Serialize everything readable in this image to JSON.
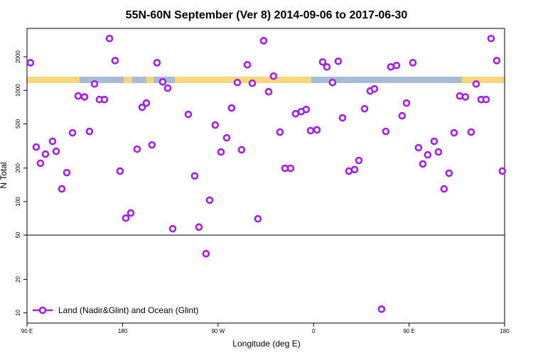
{
  "chart_data": {
    "type": "scatter",
    "title": "55N-60N September (Ver 8)   2014-09-06 to 2017-06-30",
    "x_label": "Longitude (deg E)",
    "y_label": "N Total",
    "log_y": true,
    "legend": "bottomleft",
    "reference_line": 50,
    "xlim": [
      90,
      540
    ],
    "xticks": [
      {
        "value": 90,
        "label": "90 E"
      },
      180,
      {
        "value": 270,
        "label": "90 W"
      },
      {
        "value": 360,
        "label": "0"
      },
      {
        "value": 450,
        "label": "90 E"
      },
      {
        "value": 540,
        "label": "180"
      }
    ],
    "ylim": [
      8.1,
      3600
    ],
    "yticks": [
      10,
      20,
      50,
      100,
      200,
      500,
      1000,
      2000
    ],
    "x": [
      93.3,
      98.7,
      102.7,
      107.4,
      114.1,
      117.5,
      122.8,
      127.5,
      132.9,
      138.2,
      144.2,
      148.9,
      153.6,
      158.3,
      163,
      167.7,
      173,
      177.7,
      183.1,
      187.8,
      193.8,
      198.5,
      202.5,
      207.8,
      212.5,
      217.9,
      222.6,
      227.3,
      242,
      248,
      252,
      258.7,
      262.1,
      267.4,
      272.8,
      278.2,
      282.8,
      288.2,
      292.2,
      297.6,
      302.3,
      307.6,
      313,
      317.7,
      322.3,
      328.4,
      333.1,
      338.4,
      343.1,
      348.5,
      353.1,
      357.2,
      363.2,
      368.6,
      372.6,
      377.9,
      383.3,
      387.3,
      393.3,
      398.7,
      402.7,
      408.1,
      413.4,
      417.4,
      424.1,
      428.1,
      432.8,
      438.2,
      443.5,
      447.6,
      453.6,
      458.9,
      463,
      467.6,
      473.7,
      477.7,
      483,
      487.7,
      492.4,
      497.8,
      503.1,
      508.5,
      513.2,
      517.9,
      522.6,
      527.3,
      532.6,
      537.9
    ],
    "series": [
      {
        "name": "Land (Nadir&Glint) and Ocean (Glint)",
        "color": "#a020f0",
        "values": [
          1770,
          309,
          221,
          267,
          348,
          283,
          130,
          182,
          415,
          889,
          872,
          427,
          1140,
          826,
          826,
          2920,
          1850,
          188,
          71,
          79,
          296,
          703,
          768,
          323,
          1770,
          1190,
          1045,
          57,
          607,
          170,
          59,
          34,
          103,
          487,
          279,
          374,
          693,
          1175,
          292,
          1695,
          1158,
          70,
          2790,
          971,
          1341,
          421,
          199,
          199,
          616,
          644,
          673,
          434,
          441,
          1798,
          1622,
          1175,
          1824,
          565,
          188,
          194,
          234,
          683,
          986,
          1030,
          10.8,
          427,
          1622,
          1671,
          590,
          768,
          1770,
          305,
          218,
          263,
          348,
          279,
          130,
          180,
          415,
          889,
          872,
          421,
          1140,
          826,
          826,
          2920,
          1850,
          188
        ]
      }
    ]
  }
}
